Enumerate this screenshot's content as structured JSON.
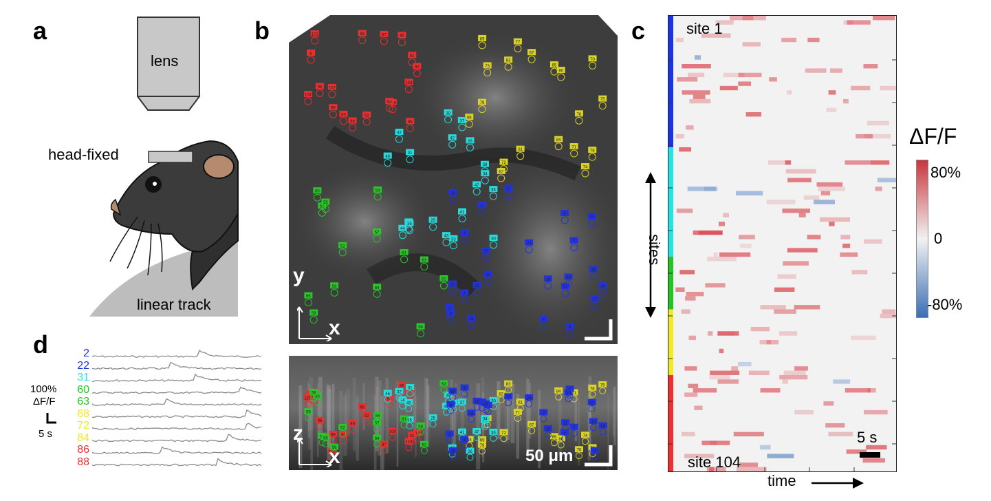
{
  "panels": {
    "a": {
      "letter": "a",
      "lens_label": "lens",
      "headfixed_label": "head-fixed",
      "track_label": "linear track"
    },
    "b": {
      "letter": "b",
      "top_axes": {
        "vertical": "y",
        "horizontal": "x"
      },
      "bottom_axes": {
        "vertical": "z",
        "horizontal": "x"
      },
      "scale_label": "50 μm"
    },
    "c": {
      "letter": "c",
      "top_site": "site 1",
      "bottom_site": "site 104",
      "sites_label": "sites",
      "time_label": "time",
      "time_scale": "5 s",
      "colorbar": {
        "title": "ΔF/F",
        "max_label": "80%",
        "mid_label": "0",
        "min_label": "-80%",
        "colors": [
          "#c8363e",
          "#f2f2f2",
          "#3a6fb6"
        ]
      },
      "site_groups": [
        {
          "color": "#1a33e6",
          "from": 1,
          "to": 30
        },
        {
          "color": "#22e5e5",
          "from": 31,
          "to": 55
        },
        {
          "color": "#22c522",
          "from": 56,
          "to": 67
        },
        {
          "color": "#f2ea22",
          "from": 68,
          "to": 82
        },
        {
          "color": "#ee3030",
          "from": 83,
          "to": 104
        }
      ]
    },
    "d": {
      "letter": "d",
      "scale_y": "100%",
      "scale_unit": "ΔF/F",
      "scale_x": "5 s",
      "traces": [
        {
          "id": "2",
          "color": "#1a33e6"
        },
        {
          "id": "22",
          "color": "#1a33e6"
        },
        {
          "id": "31",
          "color": "#22e5e5"
        },
        {
          "id": "60",
          "color": "#22c522"
        },
        {
          "id": "63",
          "color": "#22c522"
        },
        {
          "id": "68",
          "color": "#f2ea22"
        },
        {
          "id": "72",
          "color": "#f2ea22"
        },
        {
          "id": "84",
          "color": "#f2ea22"
        },
        {
          "id": "86",
          "color": "#ee3030"
        },
        {
          "id": "88",
          "color": "#ee3030"
        }
      ]
    }
  },
  "roi_labels": {
    "red": [
      "8",
      "88",
      "87",
      "104",
      "89",
      "103",
      "102",
      "86",
      "85",
      "91",
      "101",
      "100",
      "90",
      "99",
      "95",
      "94",
      "96",
      "92"
    ],
    "yellow": [
      "77",
      "68",
      "78",
      "67",
      "69",
      "82",
      "83",
      "80",
      "76",
      "79",
      "75",
      "74",
      "73",
      "72",
      "85",
      "84",
      "71",
      "81",
      "70"
    ],
    "cyan": [
      "38",
      "25",
      "44",
      "39",
      "36",
      "37",
      "45",
      "46",
      "33",
      "32",
      "31",
      "35",
      "42",
      "41",
      "30",
      "26",
      "43",
      "47",
      "34"
    ],
    "green": [
      "60",
      "59",
      "53",
      "61",
      "55",
      "62",
      "57",
      "56",
      "54",
      "58",
      "64",
      "65",
      "63",
      "52"
    ],
    "blue": [
      "6",
      "7",
      "5",
      "2",
      "10",
      "1",
      "14",
      "11",
      "13",
      "12",
      "15",
      "3",
      "4",
      "9",
      "8",
      "20",
      "21",
      "22",
      "18",
      "17",
      "19",
      "24",
      "23",
      "16"
    ]
  }
}
